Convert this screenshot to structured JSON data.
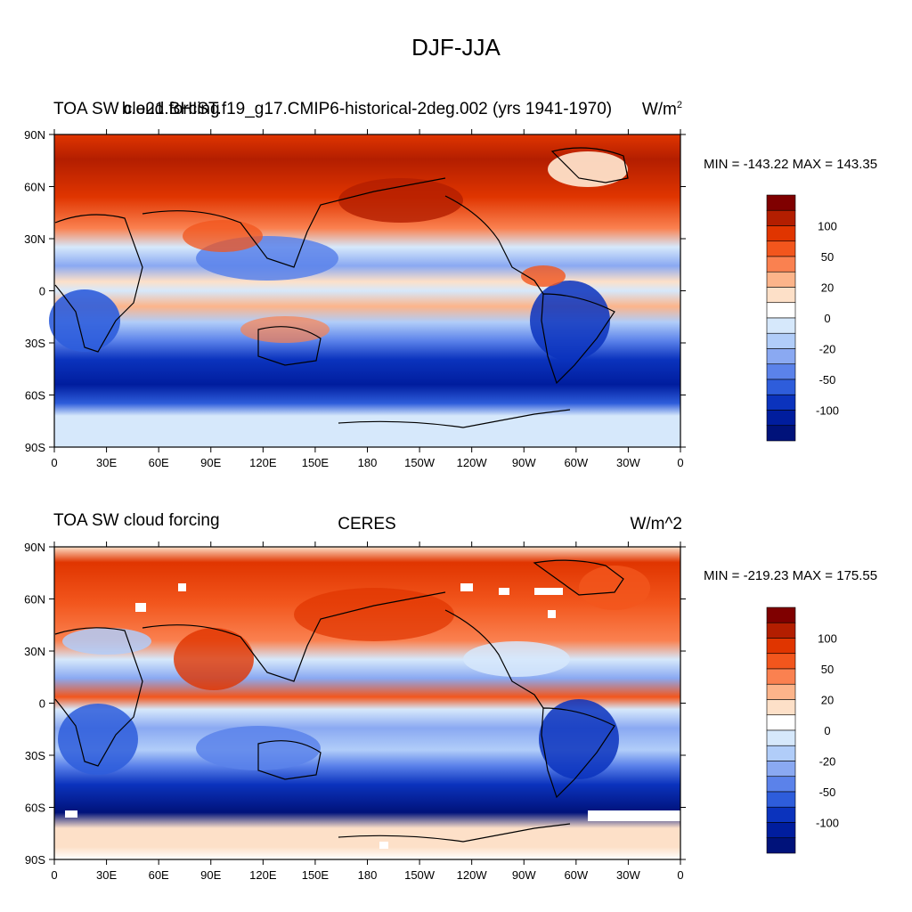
{
  "title": "DJF-JJA",
  "panels": [
    {
      "left_title": "TOA SW cloud forcing",
      "center_title": "b.e21.BHIST.f19_g17.CMIP6-historical-2deg.002 (yrs 1941-1970)",
      "units": "W/m",
      "units_sup": "2",
      "minmax": "MIN = -143.22 MAX = 143.35"
    },
    {
      "left_title": "TOA SW cloud forcing",
      "center_title": "CERES",
      "units": "W/m^2",
      "units_sup": "",
      "minmax": "MIN = -219.23 MAX = 175.55"
    }
  ],
  "colorbar": {
    "labels": [
      "100",
      "50",
      "20",
      "0",
      "-20",
      "-50",
      "-100"
    ],
    "colors": [
      "#7f0000",
      "#b31e00",
      "#e03500",
      "#f2561d",
      "#fa8150",
      "#fcb48a",
      "#fde0c8",
      "#ffffff",
      "#d6e8fb",
      "#b1cdf9",
      "#8aa9f2",
      "#5b82ea",
      "#2e5ddb",
      "#0b33bd",
      "#001d9e",
      "#00127a"
    ]
  },
  "chart_data": [
    {
      "type": "heatmap",
      "title": "TOA SW cloud forcing (DJF-JJA) b.e21.BHIST.f19_g17.CMIP6-historical-2deg.002 (yrs 1941-1970)",
      "x_tick_labels": [
        "0",
        "30E",
        "60E",
        "90E",
        "120E",
        "150E",
        "180",
        "150W",
        "120W",
        "90W",
        "60W",
        "30W",
        "0"
      ],
      "y_tick_labels": [
        "90N",
        "60N",
        "30N",
        "0",
        "30S",
        "60S",
        "90S"
      ],
      "xlim": [
        0,
        360
      ],
      "ylim": [
        -90,
        90
      ],
      "min": -143.22,
      "max": 143.35,
      "units": "W/m^2"
    },
    {
      "type": "heatmap",
      "title": "TOA SW cloud forcing (DJF-JJA) CERES",
      "x_tick_labels": [
        "0",
        "30E",
        "60E",
        "90E",
        "120E",
        "150E",
        "180",
        "150W",
        "120W",
        "90W",
        "60W",
        "30W",
        "0"
      ],
      "y_tick_labels": [
        "90N",
        "60N",
        "30N",
        "0",
        "30S",
        "60S",
        "90S"
      ],
      "xlim": [
        0,
        360
      ],
      "ylim": [
        -90,
        90
      ],
      "min": -219.23,
      "max": 175.55,
      "units": "W/m^2"
    }
  ]
}
